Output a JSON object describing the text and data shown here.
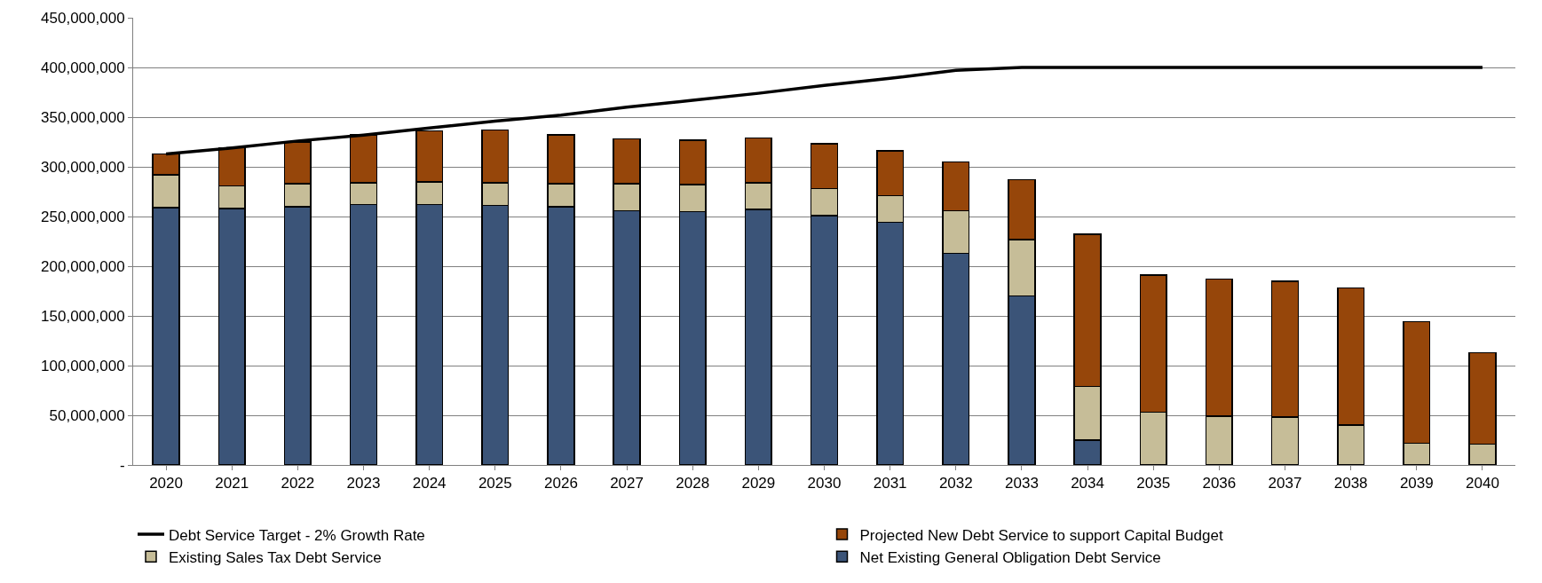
{
  "chart_data": {
    "type": "bar",
    "stacked": true,
    "grid": "y",
    "legend": "bottom",
    "categories": [
      "2020",
      "2021",
      "2022",
      "2023",
      "2024",
      "2025",
      "2026",
      "2027",
      "2028",
      "2029",
      "2030",
      "2031",
      "2032",
      "2033",
      "2034",
      "2035",
      "2036",
      "2037",
      "2038",
      "2039",
      "2040"
    ],
    "ylim": [
      0,
      450000000
    ],
    "yticks": [
      {
        "value": 0,
        "label": "-"
      },
      {
        "value": 50000000,
        "label": "50,000,000"
      },
      {
        "value": 100000000,
        "label": "100,000,000"
      },
      {
        "value": 150000000,
        "label": "150,000,000"
      },
      {
        "value": 200000000,
        "label": "200,000,000"
      },
      {
        "value": 250000000,
        "label": "250,000,000"
      },
      {
        "value": 300000000,
        "label": "300,000,000"
      },
      {
        "value": 350000000,
        "label": "350,000,000"
      },
      {
        "value": 400000000,
        "label": "400,000,000"
      },
      {
        "value": 450000000,
        "label": "450,000,000"
      }
    ],
    "series": [
      {
        "name": "Net Existing General Obligation Debt Service",
        "color": "#3b5478",
        "values": [
          259000000,
          258000000,
          260000000,
          262000000,
          262000000,
          261000000,
          260000000,
          256000000,
          255000000,
          257000000,
          251000000,
          244000000,
          213000000,
          170000000,
          25000000,
          0,
          0,
          0,
          0,
          0,
          0
        ]
      },
      {
        "name": "Existing Sales Tax Debt Service",
        "color": "#c6bd98",
        "values": [
          33000000,
          23000000,
          23000000,
          22000000,
          23000000,
          23000000,
          23000000,
          27000000,
          27000000,
          27000000,
          27000000,
          27000000,
          43000000,
          57000000,
          54000000,
          53000000,
          49000000,
          48000000,
          40000000,
          22000000,
          21000000
        ]
      },
      {
        "name": "Projected New Debt Service to support Capital Budget",
        "color": "#96460a",
        "values": [
          21000000,
          38000000,
          42000000,
          48000000,
          51000000,
          53000000,
          49000000,
          45000000,
          45000000,
          45000000,
          45000000,
          45000000,
          49000000,
          60000000,
          153000000,
          138000000,
          138000000,
          137000000,
          138000000,
          122000000,
          92000000
        ]
      },
      {
        "name": "Debt Service Target - 2% Growth Rate",
        "type": "line",
        "color": "#000000",
        "values": [
          313000000,
          319000000,
          326000000,
          332000000,
          339000000,
          346000000,
          352000000,
          360000000,
          367000000,
          374000000,
          382000000,
          389000000,
          397000000,
          400000000,
          400000000,
          400000000,
          400000000,
          400000000,
          400000000,
          400000000,
          400000000
        ]
      }
    ]
  }
}
